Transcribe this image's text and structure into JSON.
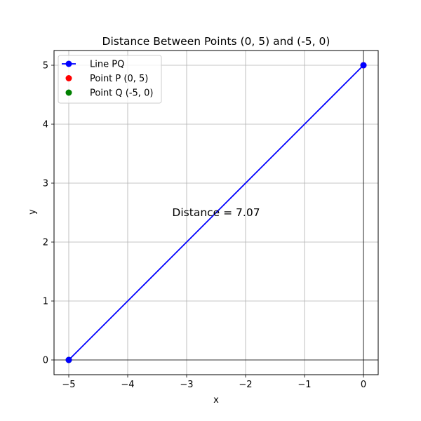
{
  "chart_data": {
    "type": "line",
    "title": "Distance Between Points (0, 5) and (-5, 0)",
    "xlabel": "x",
    "ylabel": "y",
    "xlim": [
      -5.25,
      0.25
    ],
    "ylim": [
      -0.25,
      5.25
    ],
    "xticks": [
      -5,
      -4,
      -3,
      -2,
      -1,
      0
    ],
    "yticks": [
      0,
      1,
      2,
      3,
      4,
      5
    ],
    "xtick_labels": [
      "−5",
      "−4",
      "−3",
      "−2",
      "−1",
      "0"
    ],
    "ytick_labels": [
      "0",
      "1",
      "2",
      "3",
      "4",
      "5"
    ],
    "grid": true,
    "reference_lines": {
      "x": 0,
      "y": 0,
      "color": "#000000"
    },
    "series": [
      {
        "name": "Line PQ",
        "kind": "line",
        "color": "#0000ff",
        "x": [
          -5,
          0
        ],
        "y": [
          0,
          5
        ]
      },
      {
        "name": "Point P (0, 5)",
        "kind": "scatter",
        "color": "#ff0000",
        "x": [
          0
        ],
        "y": [
          5
        ]
      },
      {
        "name": "Point Q (-5, 0)",
        "kind": "scatter",
        "color": "#008000",
        "x": [
          -5
        ],
        "y": [
          0
        ]
      }
    ],
    "annotation": {
      "text": "Distance = 7.07",
      "x": -2.5,
      "y": 2.5
    },
    "legend_position": "top-left"
  }
}
